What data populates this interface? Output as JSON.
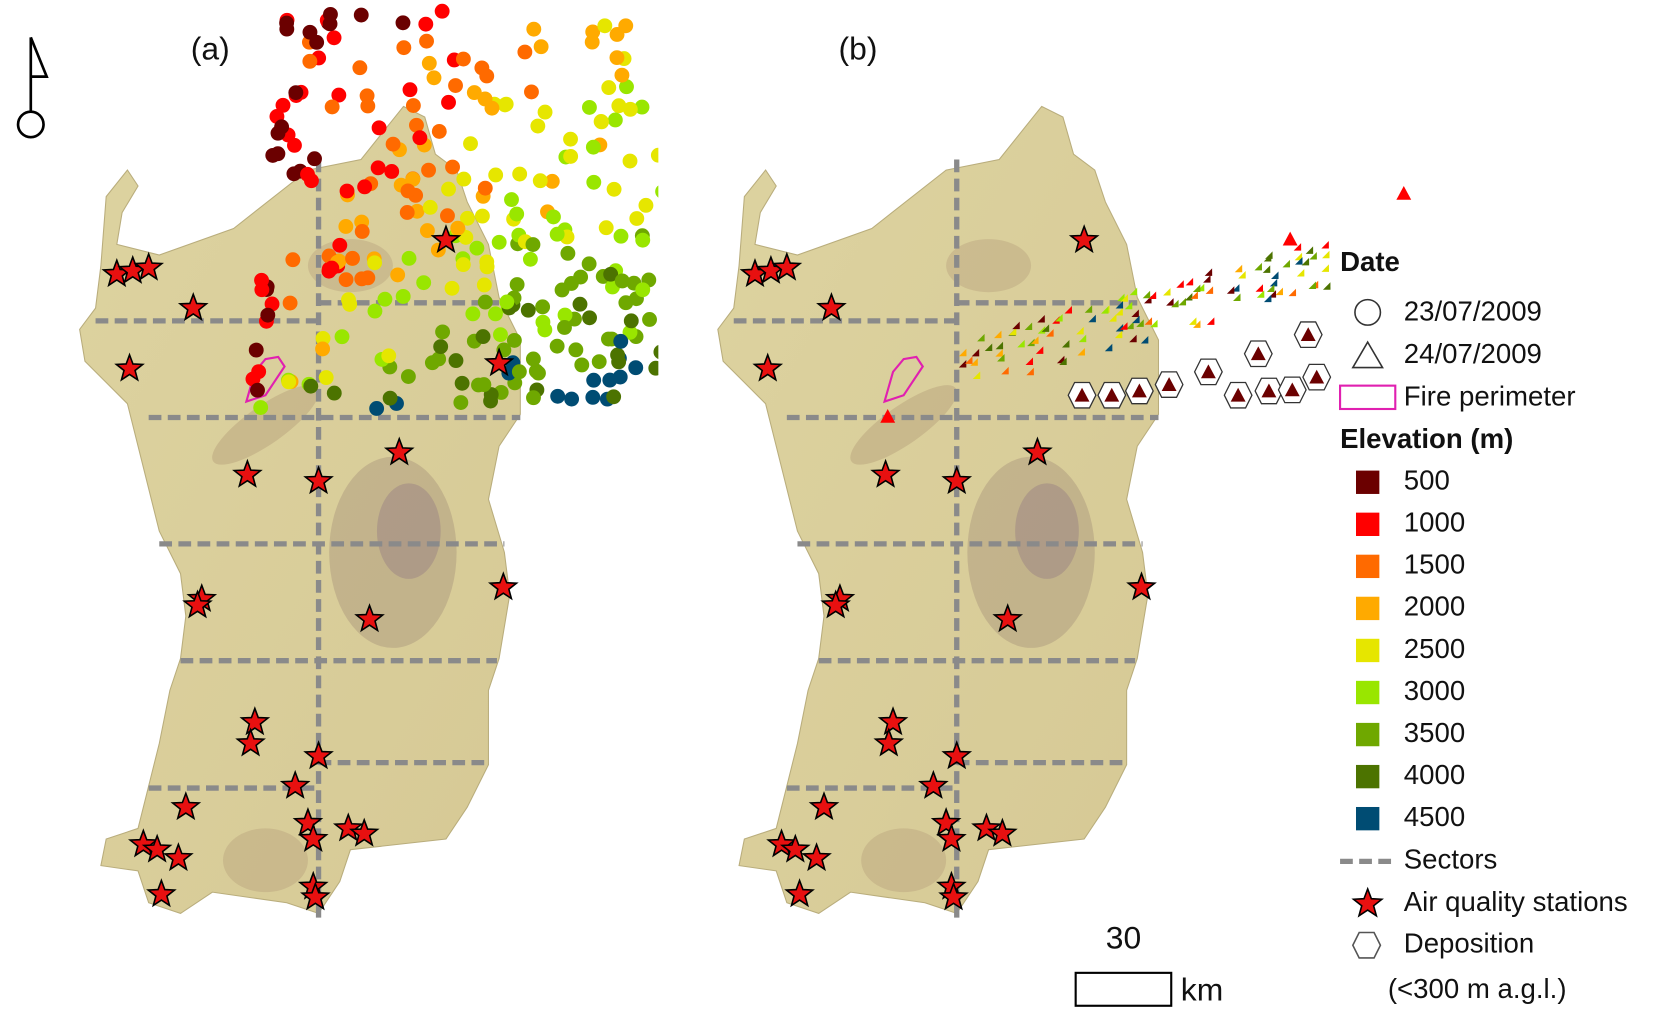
{
  "panels": [
    {
      "label": "(a)"
    },
    {
      "label": "(b)"
    }
  ],
  "legend": {
    "date_title": "Date",
    "dates": [
      "23/07/2009",
      "24/07/2009"
    ],
    "fire_perimeter": "Fire perimeter",
    "elevation_title": "Elevation (m)",
    "elevation": [
      {
        "label": "500",
        "color": "#6b0000"
      },
      {
        "label": "1000",
        "color": "#ff0000"
      },
      {
        "label": "1500",
        "color": "#ff6a00"
      },
      {
        "label": "2000",
        "color": "#ffaa00"
      },
      {
        "label": "2500",
        "color": "#e6e600"
      },
      {
        "label": "3000",
        "color": "#99e600"
      },
      {
        "label": "3500",
        "color": "#6fa800"
      },
      {
        "label": "4000",
        "color": "#4c7300"
      },
      {
        "label": "4500",
        "color": "#004c73"
      }
    ],
    "sectors": "Sectors",
    "stations": "Air quality stations",
    "deposition": "Deposition",
    "deposition_note": "(<300 m a.g.l.)"
  },
  "scale_bar": {
    "value": "30",
    "unit": "km"
  }
}
